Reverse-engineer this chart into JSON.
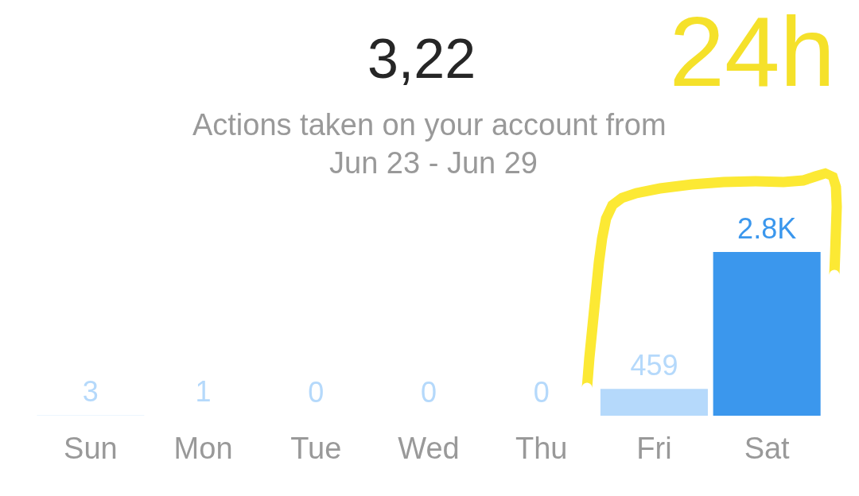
{
  "chart_data": {
    "type": "bar",
    "title": "3,22",
    "subtitle": "Actions taken on your account from Jun 23 - Jun 29",
    "categories": [
      "Sun",
      "Mon",
      "Tue",
      "Wed",
      "Thu",
      "Fri",
      "Sat"
    ],
    "values": [
      3,
      1,
      0,
      0,
      0,
      459,
      2800
    ],
    "colors": [
      "#b5d9fb",
      "#b5d9fb",
      "#b5d9fb",
      "#b5d9fb",
      "#b5d9fb",
      "#b5d9fb",
      "#3b97ed"
    ],
    "value_labels": [
      "3",
      "1",
      "0",
      "0",
      "0",
      "459",
      "2.8K"
    ],
    "annotations": [
      "24h"
    ]
  }
}
